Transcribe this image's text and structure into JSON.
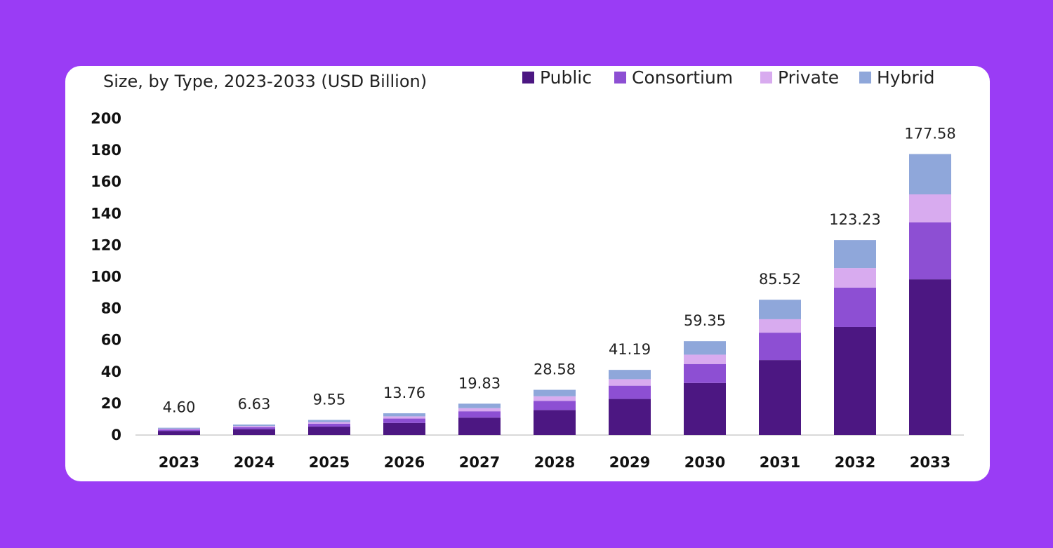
{
  "chart_data": {
    "type": "bar",
    "stacked": true,
    "title": "Size, by Type, 2023-2033 (USD Billion)",
    "categories": [
      "2023",
      "2024",
      "2025",
      "2026",
      "2027",
      "2028",
      "2029",
      "2030",
      "2031",
      "2032",
      "2033"
    ],
    "totals_labels": [
      "4.60",
      "6.63",
      "9.55",
      "13.76",
      "19.83",
      "28.58",
      "41.19",
      "59.35",
      "85.52",
      "123.23",
      "177.58"
    ],
    "series": [
      {
        "name": "Public",
        "color": "#4c1782",
        "values": [
          2.6,
          3.7,
          5.3,
          7.6,
          11.0,
          15.8,
          22.8,
          32.9,
          47.4,
          68.3,
          98.4
        ]
      },
      {
        "name": "Consortium",
        "color": "#8d4fd3",
        "values": [
          0.9,
          1.3,
          1.9,
          2.8,
          4.0,
          5.8,
          8.4,
          12.0,
          17.3,
          24.9,
          36.0
        ]
      },
      {
        "name": "Private",
        "color": "#d8abef",
        "values": [
          0.5,
          0.7,
          1.0,
          1.4,
          2.0,
          2.9,
          4.1,
          5.9,
          8.5,
          12.3,
          17.7
        ]
      },
      {
        "name": "Hybrid",
        "color": "#8fa7da",
        "values": [
          0.6,
          0.93,
          1.35,
          1.96,
          2.83,
          4.08,
          5.89,
          8.55,
          12.32,
          17.73,
          25.48
        ]
      }
    ],
    "yticks": [
      "0",
      "20",
      "40",
      "60",
      "80",
      "100",
      "120",
      "140",
      "160",
      "180",
      "200"
    ],
    "ylim": [
      0,
      200
    ],
    "grid": false,
    "legend_position": "top-right"
  }
}
